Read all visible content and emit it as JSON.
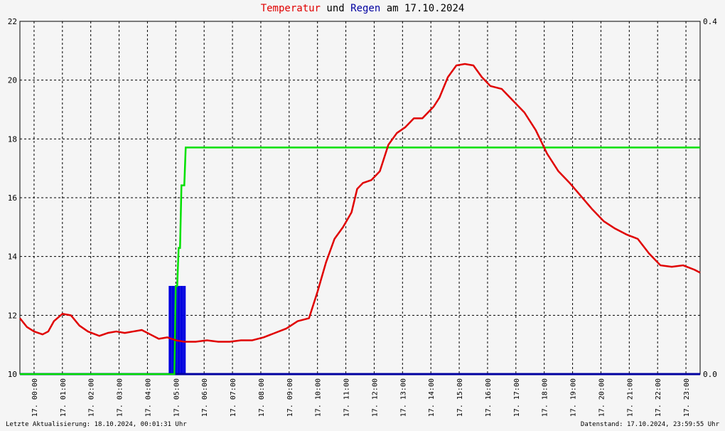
{
  "title": {
    "part1": "Temperatur",
    "part2": " und ",
    "part3": "Regen",
    "part4": " am 17.10.2024"
  },
  "footer": {
    "left": "Letzte Aktualisierung: 18.10.2024, 00:01:31 Uhr",
    "right": "Datenstand: 17.10.2024, 23:59:55 Uhr"
  },
  "colors": {
    "temperature": "#e00000",
    "rain_sum": "#00e000",
    "rain": "#0000e0",
    "grid": "#000000",
    "background": "#f5f5f5"
  },
  "chart_data": {
    "type": "line",
    "title": "Temperatur und Regen am 17.10.2024",
    "grid": true,
    "x_range_hours": [
      0,
      24
    ],
    "x_ticks": [
      "17. 00:00",
      "17. 01:00",
      "17. 02:00",
      "17. 03:00",
      "17. 04:00",
      "17. 05:00",
      "17. 06:00",
      "17. 07:00",
      "17. 08:00",
      "17. 09:00",
      "17. 10:00",
      "17. 11:00",
      "17. 12:00",
      "17. 13:00",
      "17. 14:00",
      "17. 15:00",
      "17. 16:00",
      "17. 17:00",
      "17. 18:00",
      "17. 19:00",
      "17. 20:00",
      "17. 21:00",
      "17. 22:00",
      "17. 23:00"
    ],
    "y_left": {
      "range": [
        10,
        22
      ],
      "ticks": [
        "10",
        "12",
        "14",
        "16",
        "18",
        "20",
        "22"
      ]
    },
    "y_right": {
      "range": [
        0,
        0.4
      ],
      "ticks": [
        "0.0",
        "0.4"
      ]
    },
    "series": [
      {
        "name": "Temperatur",
        "axis": "left",
        "x": [
          0,
          0.25,
          0.5,
          0.8,
          1.0,
          1.2,
          1.5,
          1.8,
          2.1,
          2.4,
          2.8,
          3.1,
          3.4,
          3.7,
          4.0,
          4.3,
          4.6,
          4.9,
          5.2,
          5.5,
          5.8,
          6.2,
          6.6,
          7.0,
          7.4,
          7.8,
          8.2,
          8.6,
          9.0,
          9.4,
          9.8,
          10.2,
          10.5,
          10.8,
          11.1,
          11.4,
          11.7,
          11.9,
          12.1,
          12.4,
          12.7,
          13.0,
          13.3,
          13.6,
          13.9,
          14.2,
          14.4,
          14.6,
          14.8,
          15.1,
          15.4,
          15.7,
          16.0,
          16.3,
          16.6,
          17.0,
          17.4,
          17.8,
          18.2,
          18.6,
          19.0,
          19.4,
          19.8,
          20.2,
          20.6,
          21.0,
          21.4,
          21.8,
          22.2,
          22.6,
          23.0,
          23.4,
          23.8,
          24.0
        ],
        "y": [
          11.9,
          11.6,
          11.45,
          11.35,
          11.45,
          11.8,
          12.05,
          12.0,
          11.65,
          11.45,
          11.3,
          11.4,
          11.45,
          11.4,
          11.45,
          11.5,
          11.35,
          11.2,
          11.25,
          11.15,
          11.1,
          11.1,
          11.15,
          11.1,
          11.1,
          11.15,
          11.15,
          11.25,
          11.4,
          11.55,
          11.8,
          11.9,
          12.8,
          13.8,
          14.6,
          15.0,
          15.5,
          16.3,
          16.5,
          16.6,
          16.9,
          17.8,
          18.2,
          18.4,
          18.7,
          18.7,
          18.9,
          19.1,
          19.4,
          20.1,
          20.5,
          20.55,
          20.5,
          20.1,
          19.8,
          19.7,
          19.3,
          18.9,
          18.3,
          17.5,
          16.9,
          16.5,
          16.05,
          15.6,
          15.2,
          14.95,
          14.75,
          14.6,
          14.1,
          13.7,
          13.65,
          13.7,
          13.55,
          13.45
        ]
      },
      {
        "name": "Regensumme",
        "axis": "right",
        "x": [
          0,
          5.45,
          5.5,
          5.55,
          5.6,
          5.65,
          5.7,
          5.8,
          5.85,
          24.0
        ],
        "y": [
          0,
          0,
          0.1,
          0.1,
          0.143,
          0.143,
          0.214,
          0.214,
          0.257,
          0.257
        ]
      },
      {
        "name": "Regen",
        "axis": "right",
        "type": "bar",
        "x": [
          5.3,
          5.4,
          5.5,
          5.6,
          5.7,
          5.8
        ],
        "y": [
          0.1,
          0.1,
          0.1,
          0.1,
          0.1,
          0.1
        ]
      }
    ]
  }
}
